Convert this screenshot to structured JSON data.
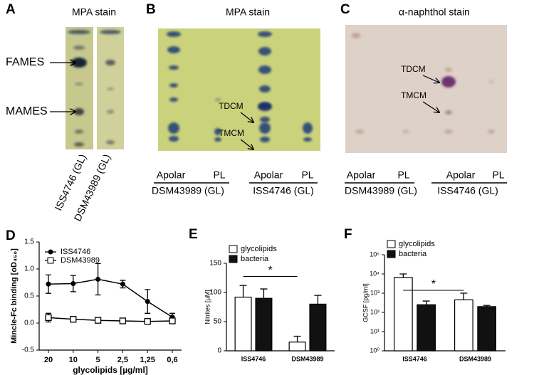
{
  "panels": {
    "A": {
      "label": "A",
      "title": "MPA stain",
      "annotations": [
        "FAMES",
        "MAMES"
      ],
      "lanes": [
        "ISS4746 (GL)",
        "DSM43989 (GL)"
      ]
    },
    "B": {
      "label": "B",
      "title": "MPA stain",
      "annotations": [
        "TDCM",
        "TMCM"
      ],
      "lanes": [
        "Apolar",
        "PL",
        "Apolar",
        "PL"
      ],
      "groups": [
        "DSM43989 (GL)",
        "ISS4746 (GL)"
      ]
    },
    "C": {
      "label": "C",
      "title": "α-naphthol stain",
      "annotations": [
        "TDCM",
        "TMCM"
      ],
      "lanes": [
        "Apolar",
        "PL",
        "Apolar",
        "PL"
      ],
      "groups": [
        "DSM43989 (GL)",
        "ISS4746 (GL)"
      ]
    }
  },
  "chart_data": [
    {
      "type": "line",
      "panel_label": "D",
      "y_label": "Mincle-Fc binding [oD₄₅₀]",
      "x_label": "glycolipids [µg/ml]",
      "categories": [
        "20",
        "10",
        "5",
        "2,5",
        "1,25",
        "0,6"
      ],
      "ylim": [
        -0.5,
        1.5
      ],
      "yticks": [
        {
          "value": -0.5,
          "label": "-0.5"
        },
        {
          "value": 0,
          "label": "0.0"
        },
        {
          "value": 0.5,
          "label": "0.5"
        },
        {
          "value": 1,
          "label": "1.0"
        },
        {
          "value": 1.5,
          "label": "1.5"
        }
      ],
      "series": [
        {
          "name": "ISS4746",
          "color": "#000000",
          "marker": "filled-circle",
          "values": [
            0.72,
            0.73,
            0.81,
            0.72,
            0.4,
            0.11
          ],
          "errors": [
            0.17,
            0.15,
            0.29,
            0.07,
            0.22,
            0.07
          ]
        },
        {
          "name": "DSM43989",
          "color": "#000000",
          "marker": "open-square",
          "values": [
            0.1,
            0.07,
            0.05,
            0.04,
            0.03,
            0.04
          ],
          "errors": [
            0.08,
            0.05,
            0.03,
            0.02,
            0.03,
            0.03
          ]
        }
      ]
    },
    {
      "type": "bar",
      "panel_label": "E",
      "y_label": "Nitrites [µM]",
      "annotation": "*",
      "categories": [
        "ISS4746",
        "DSM43989"
      ],
      "ylim": [
        0,
        150
      ],
      "yticks": [
        0,
        50,
        100,
        150
      ],
      "series": [
        {
          "name": "glycolipids",
          "color": "#ffffff",
          "values": [
            92,
            15
          ],
          "errors": [
            20,
            10
          ]
        },
        {
          "name": "bacteria",
          "color": "#111111",
          "values": [
            90,
            80
          ],
          "errors": [
            16,
            15
          ]
        }
      ]
    },
    {
      "type": "bar",
      "panel_label": "F",
      "y_label": "GCSF [pg/ml]",
      "annotation": "*",
      "log_scale": true,
      "categories": [
        "ISS4746",
        "DSM43989"
      ],
      "ylim": [
        1,
        100000
      ],
      "yticks": [
        {
          "value": 1,
          "label": "10⁰"
        },
        {
          "value": 10,
          "label": "10¹"
        },
        {
          "value": 100,
          "label": "10²"
        },
        {
          "value": 1000,
          "label": "10³"
        },
        {
          "value": 10000,
          "label": "10⁴"
        },
        {
          "value": 100000,
          "label": "10⁵"
        }
      ],
      "series": [
        {
          "name": "glycolipids",
          "color": "#ffffff",
          "values": [
            6500,
            450
          ],
          "errors": [
            3500,
            550
          ]
        },
        {
          "name": "bacteria",
          "color": "#111111",
          "values": [
            250,
            200
          ],
          "errors": [
            140,
            30
          ]
        }
      ]
    }
  ]
}
